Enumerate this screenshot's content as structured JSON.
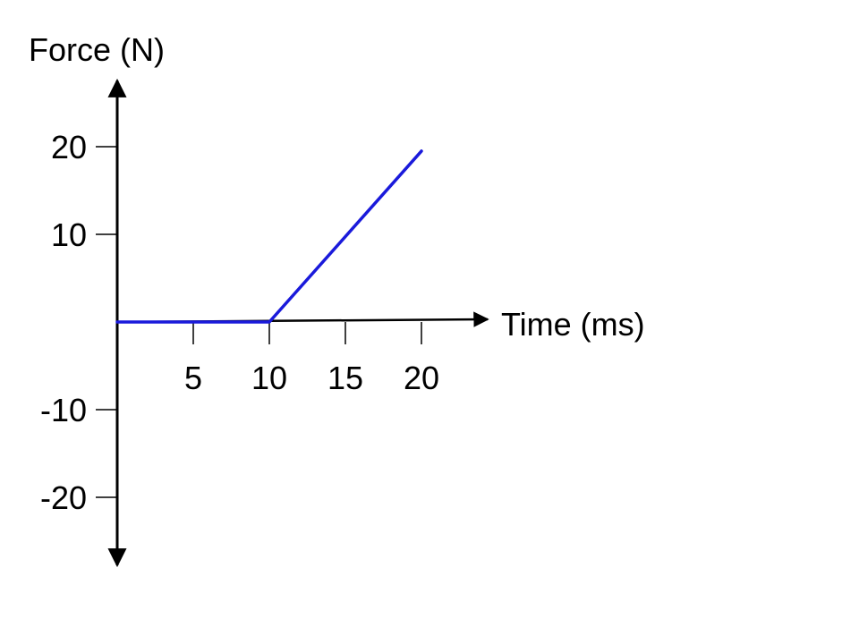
{
  "chart_data": {
    "type": "line",
    "title": "",
    "xlabel": "Time (ms)",
    "ylabel": "Force (N)",
    "x_ticks": [
      5,
      10,
      15,
      20
    ],
    "y_ticks": [
      20,
      10,
      -10,
      -20
    ],
    "x_tick_labels": [
      "5",
      "10",
      "15",
      "20"
    ],
    "y_tick_labels": [
      "20",
      "10",
      "-10",
      "-20"
    ],
    "xlim": [
      0,
      25
    ],
    "ylim": [
      -27,
      27
    ],
    "grid": false,
    "series": [
      {
        "color": "#1a1adb",
        "points": [
          {
            "x": 0,
            "y": 0
          },
          {
            "x": 10,
            "y": 0
          },
          {
            "x": 20,
            "y": 19.5
          }
        ]
      }
    ]
  },
  "colors": {
    "axis": "#000000",
    "series": "#1a1adb",
    "background": "#ffffff"
  }
}
